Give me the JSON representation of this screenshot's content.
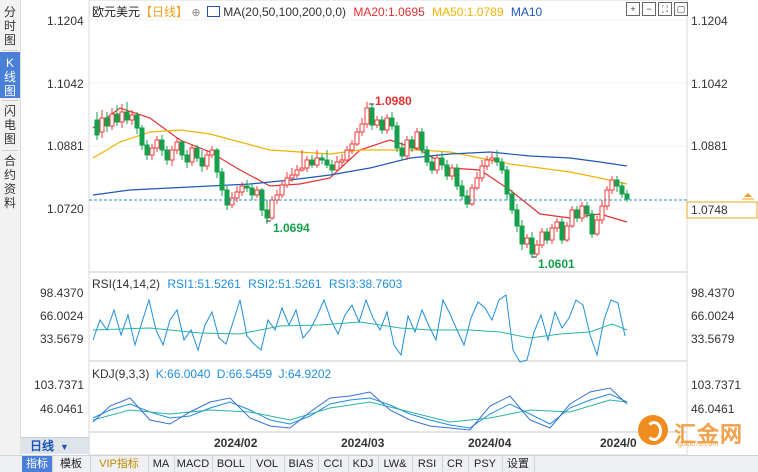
{
  "side_tabs": [
    {
      "label": "分时图",
      "active": false
    },
    {
      "label": "K线图",
      "active": true
    },
    {
      "label": "闪电图",
      "active": false
    },
    {
      "label": "合约资料",
      "active": false
    }
  ],
  "header": {
    "symbol": "欧元美元",
    "period": "【日线】",
    "ma_title": "MA(20,50,100,200,0,0)",
    "ma20": "MA20:1.0695",
    "ma50": "MA50:1.0789",
    "ma10": "MA10"
  },
  "price_axis": {
    "ticks": [
      "1.1204",
      "1.1042",
      "1.0881",
      "1.0720"
    ],
    "current_price": "1.0748"
  },
  "annotations": {
    "high": "1.0980",
    "low1": "1.0694",
    "low2": "1.0601"
  },
  "rsi": {
    "title": "RSI(14,14,2)",
    "rsi1": "RSI1:51.5261",
    "rsi2": "RSI2:51.5261",
    "rsi3": "RSI3:38.7603",
    "ticks": [
      "98.4370",
      "66.0024",
      "33.5679"
    ]
  },
  "kdj": {
    "title": "KDJ(9,3,3)",
    "k": "K:66.0040",
    "d": "D:66.5459",
    "j": "J:64.9202",
    "ticks": [
      "103.7371",
      "46.0461"
    ]
  },
  "date_axis": [
    "2024/02",
    "2024/03",
    "2024/04",
    "2024/0"
  ],
  "period_tab": "日线",
  "bottom_tabs": [
    {
      "label": "指标",
      "active": true
    },
    {
      "label": "模板"
    },
    {
      "label": "VIP指标",
      "vip": true
    },
    {
      "label": "MA"
    },
    {
      "label": "MACD"
    },
    {
      "label": "BOLL"
    },
    {
      "label": "VOL"
    },
    {
      "label": "BIAS"
    },
    {
      "label": "CCI"
    },
    {
      "label": "KDJ"
    },
    {
      "label": "LW&"
    },
    {
      "label": "RSI"
    },
    {
      "label": "CR"
    },
    {
      "label": "PSY"
    },
    {
      "label": "设置"
    }
  ],
  "watermark": {
    "brand": "汇金网",
    "url": "gold678.com"
  },
  "colors": {
    "up": "#f23b3b",
    "down": "#15a04b",
    "ma20": "#e5302f",
    "ma50": "#f0b400",
    "ma100": "#1f58b6",
    "ma10": "#1f58b6",
    "rsi_line": "#1f8fe0",
    "rsi_line2": "#2ab3a2"
  }
}
